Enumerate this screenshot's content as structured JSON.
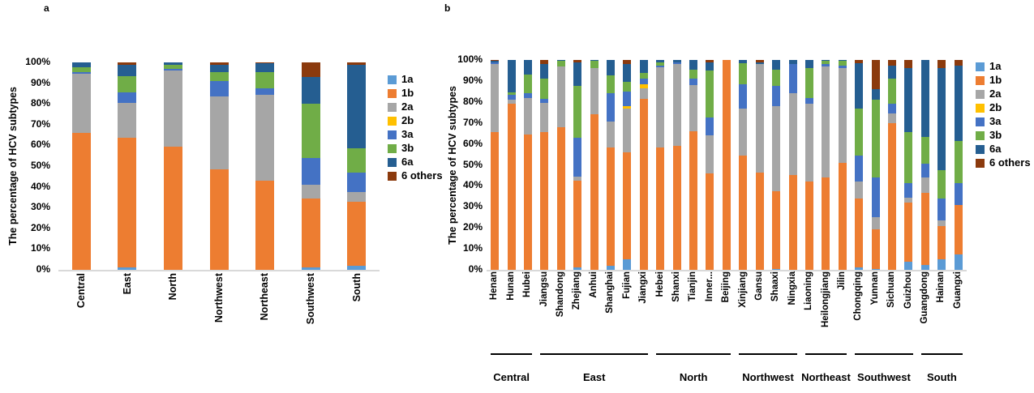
{
  "figure": {
    "panel_a_letter": "a",
    "panel_b_letter": "b",
    "y_axis_title": "The percentage of HCV subtypes",
    "axis_color": "#d9d9d9"
  },
  "legend": {
    "items": [
      {
        "label": "1a",
        "color": "#5B9BD5"
      },
      {
        "label": "1b",
        "color": "#ED7D31"
      },
      {
        "label": "2a",
        "color": "#A6A6A6"
      },
      {
        "label": "2b",
        "color": "#FFC000"
      },
      {
        "label": "3a",
        "color": "#4472C4"
      },
      {
        "label": "3b",
        "color": "#70AD47"
      },
      {
        "label": "6a",
        "color": "#255E91"
      },
      {
        "label": "6 others",
        "color": "#8B3A0D"
      }
    ]
  },
  "chart_data": [
    {
      "type": "stacked-bar-100",
      "panel": "a",
      "title": "",
      "ylabel": "The percentage of HCV subtypes",
      "ylim": [
        0,
        100
      ],
      "yticks": [
        "0%",
        "10%",
        "20%",
        "30%",
        "40%",
        "50%",
        "60%",
        "70%",
        "80%",
        "90%",
        "100%"
      ],
      "legend_position": "right",
      "grid": false,
      "categories": [
        "Central",
        "East",
        "North",
        "Northwest",
        "Northeast",
        "Southwest",
        "South"
      ],
      "series": [
        {
          "name": "1a",
          "color": "#5B9BD5",
          "values": [
            0,
            1,
            0,
            0,
            0,
            1,
            2
          ]
        },
        {
          "name": "1b",
          "color": "#ED7D31",
          "values": [
            66,
            62.5,
            59.5,
            48.5,
            43,
            33.5,
            31
          ]
        },
        {
          "name": "2a",
          "color": "#A6A6A6",
          "values": [
            28.5,
            17,
            36.5,
            35,
            41.5,
            6.5,
            4.5
          ]
        },
        {
          "name": "2b",
          "color": "#FFC000",
          "values": [
            0,
            0,
            0,
            0,
            0,
            0,
            0
          ]
        },
        {
          "name": "3a",
          "color": "#4472C4",
          "values": [
            1,
            5,
            1,
            7.5,
            3,
            13,
            9.5
          ]
        },
        {
          "name": "3b",
          "color": "#70AD47",
          "values": [
            2,
            8,
            2,
            4.5,
            8,
            26,
            11.5
          ]
        },
        {
          "name": "6a",
          "color": "#255E91",
          "values": [
            2.5,
            5.5,
            1,
            3.5,
            4,
            13,
            40.5
          ]
        },
        {
          "name": "6 others",
          "color": "#8B3A0D",
          "values": [
            0,
            1,
            0,
            1,
            0.5,
            7,
            1
          ]
        }
      ]
    },
    {
      "type": "stacked-bar-100",
      "panel": "b",
      "title": "",
      "ylabel": "The percentage of HCV subtypes",
      "ylim": [
        0,
        100
      ],
      "yticks": [
        "0%",
        "10%",
        "20%",
        "30%",
        "40%",
        "50%",
        "60%",
        "70%",
        "80%",
        "90%",
        "100%"
      ],
      "legend_position": "right",
      "grid": false,
      "categories": [
        "Henan",
        "Hunan",
        "Hubei",
        "Jiangsu",
        "Shandong",
        "Zhejiang",
        "Anhui",
        "Shanghai",
        "Fujian",
        "Jiangxi",
        "Hebei",
        "Shanxi",
        "Tianjin",
        "Inner...",
        "Beijing",
        "Xinjiang",
        "Gansu",
        "Shaaxi",
        "Ningxia",
        "Liaoning",
        "Heilongjiang",
        "Jilin",
        "Chongqing",
        "Yunnan",
        "Sichuan",
        "Guizhou",
        "Guangdong",
        "Hainan",
        "Guangxi"
      ],
      "groups": [
        {
          "label": "Central",
          "start": 0,
          "end": 2
        },
        {
          "label": "East",
          "start": 3,
          "end": 9
        },
        {
          "label": "North",
          "start": 10,
          "end": 14
        },
        {
          "label": "Northwest",
          "start": 15,
          "end": 18
        },
        {
          "label": "Northeast",
          "start": 19,
          "end": 21
        },
        {
          "label": "Southwest",
          "start": 22,
          "end": 25
        },
        {
          "label": "South",
          "start": 26,
          "end": 28
        }
      ],
      "series": [
        {
          "name": "1a",
          "color": "#5B9BD5",
          "values": [
            0,
            0,
            0,
            0,
            0,
            1,
            0,
            2,
            5,
            0,
            0,
            0,
            0,
            0,
            0,
            0,
            0,
            0.5,
            0,
            0,
            0,
            0,
            1,
            0.5,
            0,
            4,
            2.5,
            5,
            7.5
          ]
        },
        {
          "name": "1b",
          "color": "#ED7D31",
          "values": [
            65.5,
            79,
            64.5,
            65.5,
            68,
            41.5,
            74,
            56.5,
            51,
            81.5,
            58.5,
            59,
            66,
            46,
            100,
            54.5,
            46.5,
            37,
            45,
            42,
            44,
            51,
            33,
            19,
            70,
            28,
            34,
            16,
            23.5
          ]
        },
        {
          "name": "2a",
          "color": "#A6A6A6",
          "values": [
            32.5,
            2,
            17.5,
            14,
            29,
            2,
            22,
            12,
            21,
            5,
            38,
            39,
            22,
            18,
            0,
            22.5,
            51.5,
            40.5,
            39,
            37,
            53,
            45,
            8,
            5.5,
            4.5,
            2.5,
            7.5,
            2.5,
            0
          ]
        },
        {
          "name": "2b",
          "color": "#FFC000",
          "values": [
            0,
            0,
            0,
            0,
            0,
            0,
            0,
            0,
            1,
            2,
            0,
            0,
            0,
            0,
            0,
            0,
            0,
            0,
            0,
            0,
            0,
            0,
            0,
            0,
            0,
            0,
            0,
            0,
            0
          ]
        },
        {
          "name": "3a",
          "color": "#4472C4",
          "values": [
            1,
            2.5,
            2,
            2,
            0,
            18.5,
            0,
            13.5,
            7,
            2.5,
            1,
            1,
            3,
            8.5,
            0,
            11.5,
            0,
            9.5,
            14,
            3,
            1,
            1.5,
            12.5,
            19,
            4.5,
            7,
            6.5,
            10.5,
            10.5
          ]
        },
        {
          "name": "3b",
          "color": "#70AD47",
          "values": [
            0,
            1,
            9,
            9.5,
            2.5,
            24.5,
            3.5,
            8.5,
            4.5,
            3,
            1.5,
            0,
            4.5,
            22.5,
            0,
            10,
            0,
            8,
            0,
            14,
            1.5,
            2,
            22.5,
            37,
            12,
            24,
            13,
            13.5,
            20
          ]
        },
        {
          "name": "6a",
          "color": "#255E91",
          "values": [
            0.5,
            15.5,
            7,
            7,
            0.5,
            11.5,
            0.5,
            7.5,
            8.5,
            6,
            1,
            1,
            4.5,
            4,
            0,
            1.5,
            1,
            4.5,
            2,
            4,
            0.5,
            0.5,
            21.5,
            5,
            6.5,
            30.5,
            36.5,
            48.5,
            36
          ]
        },
        {
          "name": "6 others",
          "color": "#8B3A0D",
          "values": [
            0.5,
            0,
            0,
            2,
            0,
            1,
            0,
            0,
            2,
            0,
            0,
            0,
            0,
            1,
            0,
            0,
            1,
            0,
            0,
            0,
            0,
            0,
            1.5,
            14,
            2.5,
            4,
            0,
            4,
            2.5
          ]
        }
      ]
    }
  ]
}
